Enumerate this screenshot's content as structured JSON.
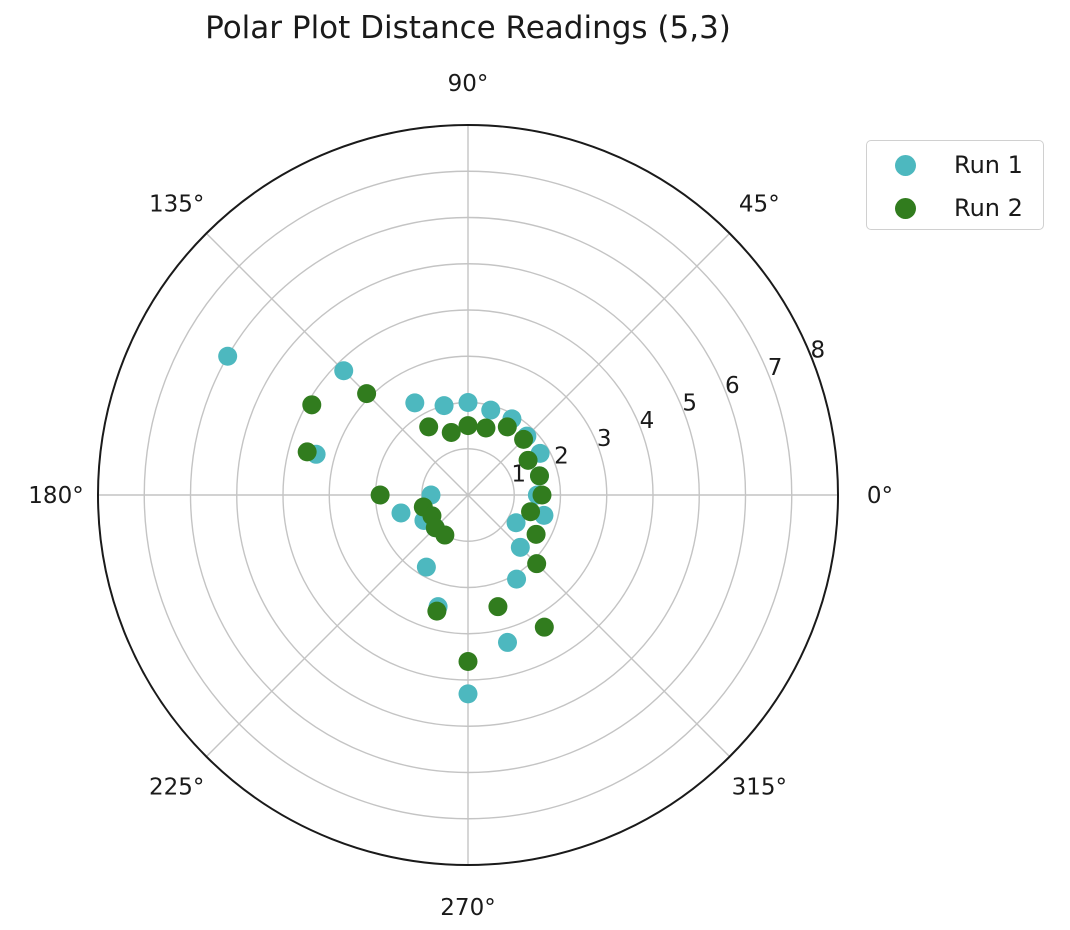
{
  "chart_data": {
    "type": "scatter",
    "projection": "polar",
    "title": "Polar Plot Distance Readings (5,3)",
    "theta_unit": "degrees",
    "theta_ticks": [
      "0°",
      "45°",
      "90°",
      "135°",
      "180°",
      "225°",
      "270°",
      "315°"
    ],
    "r_ticks": [
      "1",
      "2",
      "3",
      "4",
      "5",
      "6",
      "7",
      "8"
    ],
    "rlim": [
      0,
      8
    ],
    "grid": true,
    "legend": "upper-right outside",
    "series": [
      {
        "name": "Run 1",
        "color": "#4db8bf",
        "points": [
          {
            "theta": 0,
            "r": 1.5
          },
          {
            "theta": 15,
            "r": 1.6
          },
          {
            "theta": 30,
            "r": 1.8
          },
          {
            "theta": 45,
            "r": 1.8
          },
          {
            "theta": 60,
            "r": 1.9
          },
          {
            "theta": 75,
            "r": 1.9
          },
          {
            "theta": 90,
            "r": 2.0
          },
          {
            "theta": 105,
            "r": 2.0
          },
          {
            "theta": 120,
            "r": 2.3
          },
          {
            "theta": 135,
            "r": 3.8
          },
          {
            "theta": 150,
            "r": 6.0
          },
          {
            "theta": 165,
            "r": 3.4
          },
          {
            "theta": 180,
            "r": 0.8
          },
          {
            "theta": 195,
            "r": 1.5
          },
          {
            "theta": 210,
            "r": 1.1
          },
          {
            "theta": 225,
            "r": 1.0
          },
          {
            "theta": 240,
            "r": 1.8
          },
          {
            "theta": 255,
            "r": 2.5
          },
          {
            "theta": 270,
            "r": 4.3
          },
          {
            "theta": 285,
            "r": 3.3
          },
          {
            "theta": 300,
            "r": 2.1
          },
          {
            "theta": 315,
            "r": 1.6
          },
          {
            "theta": 330,
            "r": 1.2
          },
          {
            "theta": 345,
            "r": 1.7
          }
        ]
      },
      {
        "name": "Run 2",
        "color": "#317c1e",
        "points": [
          {
            "theta": 0,
            "r": 1.6
          },
          {
            "theta": 15,
            "r": 1.6
          },
          {
            "theta": 30,
            "r": 1.5
          },
          {
            "theta": 45,
            "r": 1.7
          },
          {
            "theta": 60,
            "r": 1.7
          },
          {
            "theta": 75,
            "r": 1.5
          },
          {
            "theta": 90,
            "r": 1.5
          },
          {
            "theta": 105,
            "r": 1.4
          },
          {
            "theta": 120,
            "r": 1.7
          },
          {
            "theta": 135,
            "r": 3.1
          },
          {
            "theta": 150,
            "r": 3.9
          },
          {
            "theta": 165,
            "r": 3.6
          },
          {
            "theta": 180,
            "r": 1.9
          },
          {
            "theta": 195,
            "r": 1.0
          },
          {
            "theta": 210,
            "r": 0.9
          },
          {
            "theta": 225,
            "r": 1.0
          },
          {
            "theta": 240,
            "r": 1.0
          },
          {
            "theta": 255,
            "r": 2.6
          },
          {
            "theta": 270,
            "r": 3.6
          },
          {
            "theta": 285,
            "r": 2.5
          },
          {
            "theta": 300,
            "r": 3.3
          },
          {
            "theta": 315,
            "r": 2.1
          },
          {
            "theta": 330,
            "r": 1.7
          },
          {
            "theta": 345,
            "r": 1.4
          }
        ]
      }
    ]
  }
}
